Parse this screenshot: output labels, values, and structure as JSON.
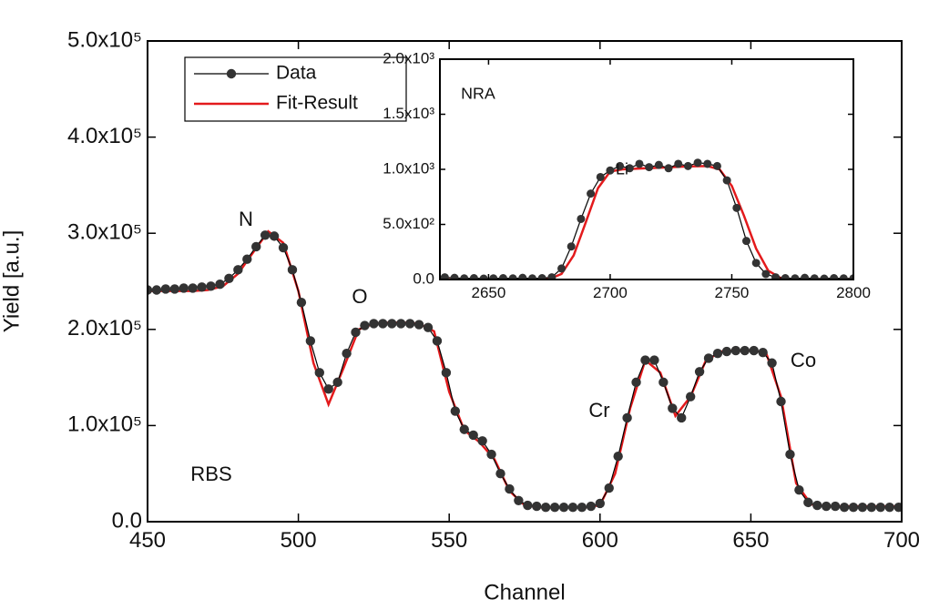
{
  "chart_data": [
    {
      "type": "line",
      "xlabel": "Channel",
      "ylabel": "Yield [a.u.]",
      "xlim": [
        450,
        700
      ],
      "ylim": [
        0,
        500000
      ],
      "xticks": [
        450,
        500,
        550,
        600,
        650,
        700
      ],
      "yticks": [
        {
          "value": 0,
          "label": "0.0"
        },
        {
          "value": 100000,
          "label": "1.0x10⁵"
        },
        {
          "value": 200000,
          "label": "2.0x10⁵"
        },
        {
          "value": 300000,
          "label": "3.0x10⁵"
        },
        {
          "value": 400000,
          "label": "4.0x10⁵"
        },
        {
          "value": 500000,
          "label": "5.0x10⁵"
        }
      ],
      "legend": "top-left",
      "annotations": [
        "N",
        "O",
        "Cr",
        "Co",
        "RBS"
      ],
      "series": [
        {
          "name": "Data",
          "color": "#333333",
          "marker": true,
          "x": [
            450,
            453,
            456,
            459,
            462,
            465,
            468,
            471,
            474,
            477,
            480,
            483,
            486,
            489,
            492,
            495,
            498,
            501,
            504,
            507,
            510,
            513,
            516,
            519,
            522,
            525,
            528,
            531,
            534,
            537,
            540,
            543,
            546,
            549,
            552,
            555,
            558,
            561,
            564,
            567,
            570,
            573,
            576,
            579,
            582,
            585,
            588,
            591,
            594,
            597,
            600,
            603,
            606,
            609,
            612,
            615,
            618,
            621,
            624,
            627,
            630,
            633,
            636,
            639,
            642,
            645,
            648,
            651,
            654,
            657,
            660,
            663,
            666,
            669,
            672,
            675,
            678,
            681,
            684,
            687,
            690,
            693,
            696,
            699
          ],
          "values": [
            241000,
            241000,
            242000,
            242000,
            243000,
            243000,
            244000,
            245000,
            247000,
            253000,
            262000,
            273000,
            286000,
            298000,
            297000,
            285000,
            262000,
            228000,
            188000,
            155000,
            138000,
            145000,
            175000,
            197000,
            204000,
            206000,
            206000,
            206000,
            206000,
            206000,
            205000,
            202000,
            188000,
            155000,
            115000,
            96000,
            90000,
            84000,
            70000,
            50000,
            34000,
            22000,
            17000,
            16000,
            15000,
            15000,
            15000,
            15000,
            15000,
            16000,
            19000,
            35000,
            68000,
            108000,
            145000,
            168000,
            168000,
            145000,
            118000,
            108000,
            130000,
            156000,
            170000,
            175000,
            177000,
            178000,
            178000,
            178000,
            176000,
            165000,
            125000,
            70000,
            33000,
            20000,
            17000,
            16000,
            16000,
            15000,
            15000,
            15000,
            15000,
            15000,
            15000,
            15000
          ]
        },
        {
          "name": "Fit-Result",
          "color": "#e31a1c",
          "marker": false,
          "x": [
            450,
            455,
            460,
            465,
            470,
            475,
            480,
            485,
            490,
            495,
            500,
            505,
            510,
            515,
            520,
            525,
            530,
            535,
            540,
            545,
            550,
            555,
            560,
            565,
            570,
            575,
            580,
            585,
            590,
            595,
            600,
            605,
            610,
            615,
            620,
            625,
            630,
            635,
            640,
            645,
            650,
            655,
            660,
            665,
            670,
            675,
            680,
            685,
            690,
            695,
            700
          ],
          "values": [
            240000,
            240000,
            240000,
            240000,
            241000,
            245000,
            258000,
            280000,
            302000,
            290000,
            240000,
            165000,
            122000,
            160000,
            200000,
            206000,
            207000,
            207000,
            206000,
            198000,
            135000,
            95000,
            83000,
            65000,
            32000,
            17000,
            15000,
            15000,
            15000,
            15000,
            17000,
            50000,
            118000,
            168000,
            155000,
            110000,
            130000,
            167000,
            177000,
            178000,
            178000,
            176000,
            130000,
            40000,
            18000,
            16000,
            16000,
            16000,
            16000,
            16000,
            16000
          ]
        }
      ]
    },
    {
      "type": "line",
      "xlim": [
        2630,
        2800
      ],
      "ylim": [
        0,
        2000
      ],
      "xticks": [
        2650,
        2700,
        2750,
        2800
      ],
      "yticks": [
        {
          "value": 0,
          "label": "0.0"
        },
        {
          "value": 500,
          "label": "5.0x10²"
        },
        {
          "value": 1000,
          "label": "1.0x10³"
        },
        {
          "value": 1500,
          "label": "1.5x10³"
        },
        {
          "value": 2000,
          "label": "2.0x10³"
        }
      ],
      "annotations": [
        "NRA",
        "Li"
      ],
      "series": [
        {
          "name": "Data",
          "color": "#333333",
          "marker": true,
          "x": [
            2632,
            2636,
            2640,
            2644,
            2648,
            2652,
            2656,
            2660,
            2664,
            2668,
            2672,
            2676,
            2680,
            2684,
            2688,
            2692,
            2696,
            2700,
            2704,
            2708,
            2712,
            2716,
            2720,
            2724,
            2728,
            2732,
            2736,
            2740,
            2744,
            2748,
            2752,
            2756,
            2760,
            2764,
            2768,
            2772,
            2776,
            2780,
            2784,
            2788,
            2792,
            2796,
            2800
          ],
          "values": [
            20,
            15,
            10,
            12,
            8,
            10,
            12,
            10,
            15,
            10,
            12,
            20,
            100,
            300,
            550,
            780,
            930,
            990,
            1030,
            1010,
            1050,
            1020,
            1040,
            1010,
            1050,
            1030,
            1060,
            1050,
            1030,
            900,
            650,
            350,
            150,
            50,
            20,
            12,
            10,
            15,
            10,
            8,
            12,
            10,
            10
          ]
        },
        {
          "name": "Fit-Result",
          "color": "#e31a1c",
          "marker": false,
          "x": [
            2630,
            2635,
            2640,
            2645,
            2650,
            2655,
            2660,
            2665,
            2670,
            2675,
            2680,
            2685,
            2690,
            2695,
            2700,
            2705,
            2710,
            2715,
            2720,
            2725,
            2730,
            2735,
            2740,
            2745,
            2750,
            2755,
            2760,
            2765,
            2770,
            2775,
            2780,
            2785,
            2790,
            2795,
            2800
          ],
          "values": [
            0,
            0,
            0,
            0,
            0,
            0,
            0,
            0,
            0,
            5,
            50,
            220,
            520,
            830,
            980,
            1000,
            1005,
            1010,
            1015,
            1020,
            1025,
            1028,
            1030,
            1000,
            850,
            580,
            280,
            80,
            15,
            3,
            3,
            3,
            3,
            3,
            3
          ]
        }
      ]
    }
  ]
}
